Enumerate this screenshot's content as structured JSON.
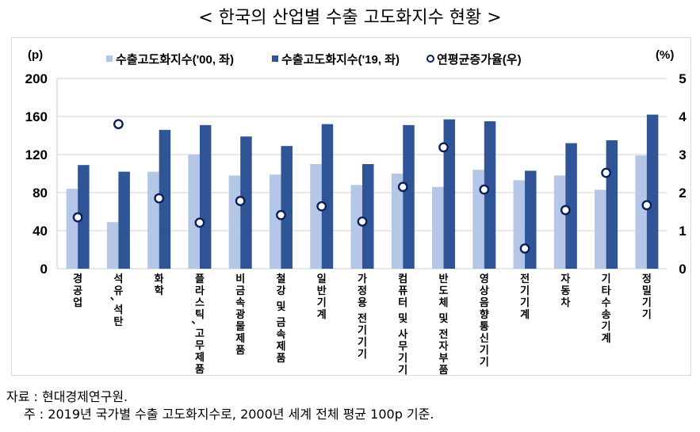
{
  "title": "< 한국의 산업별 수출 고도화지수 현황 >",
  "axes": {
    "left_unit": "(p)",
    "right_unit": "(%)",
    "left_ticks": [
      "0",
      "40",
      "80",
      "120",
      "160",
      "200"
    ],
    "right_ticks": [
      "0",
      "1",
      "2",
      "3",
      "4",
      "5"
    ]
  },
  "legend": [
    {
      "label": "수출고도화지수('00, 좌)",
      "marker": "square",
      "color": "#b4c7e7"
    },
    {
      "label": "수출고도화지수('19, 좌)",
      "marker": "square",
      "color": "#2f5597"
    },
    {
      "label": "연평균증가율(우)",
      "marker": "circle-outline",
      "color": "#0b1f5c"
    }
  ],
  "notes": {
    "source": "자료 : 현대경제연구원.",
    "note": "주 : 2019년 국가별 수출 고도화지수로, 2000년 세계 전체 평균 100p 기준."
  },
  "colors": {
    "bar_2000": "#b4c7e7",
    "bar_2019": "#2f5597",
    "marker_stroke": "#0b1f5c",
    "gridline": "#d9d9d9"
  },
  "chart_data": {
    "type": "bar",
    "title": "< 한국의 산업별 수출 고도화지수 현황 >",
    "xlabel": "",
    "ylabel": "(p)",
    "y2label": "(%)",
    "ylim": [
      0,
      200
    ],
    "y2lim": [
      0,
      5
    ],
    "grid": true,
    "legend_position": "top",
    "categories": [
      "경공업",
      "석유, 석탄",
      "화학",
      "플라스틱, 고무제품",
      "비금속광물제품",
      "철강 및 금속제품",
      "일반기계",
      "가정용 전기기기",
      "컴퓨터 및 사무기기",
      "반도체 및 전자부품",
      "영상음향통신기기",
      "전기기계",
      "자동차",
      "기타수송기계",
      "정밀기기"
    ],
    "series": [
      {
        "name": "수출고도화지수('00, 좌)",
        "type": "bar",
        "axis": "left",
        "values": [
          84,
          49,
          102,
          120,
          98,
          99,
          110,
          88,
          100,
          86,
          104,
          93,
          98,
          83,
          119
        ]
      },
      {
        "name": "수출고도화지수('19, 좌)",
        "type": "bar",
        "axis": "left",
        "values": [
          109,
          102,
          146,
          151,
          139,
          129,
          152,
          110,
          151,
          157,
          155,
          103,
          132,
          135,
          162
        ]
      },
      {
        "name": "연평균증가율(우)",
        "type": "scatter",
        "axis": "right",
        "values": [
          1.35,
          3.8,
          1.85,
          1.21,
          1.78,
          1.41,
          1.64,
          1.24,
          2.15,
          3.19,
          2.08,
          0.53,
          1.54,
          2.52,
          1.67
        ]
      }
    ]
  }
}
